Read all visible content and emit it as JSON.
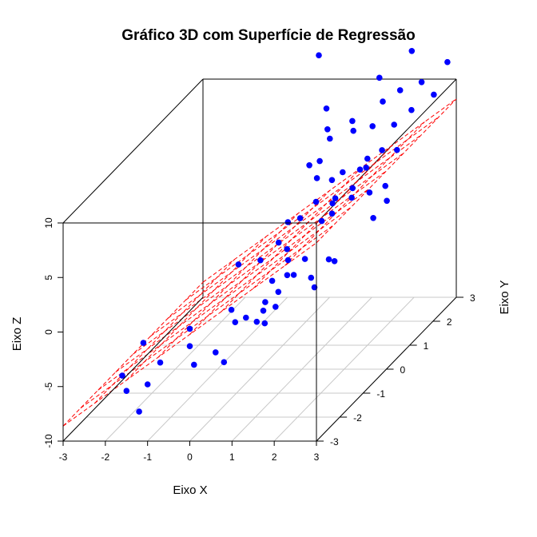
{
  "chart_data": {
    "type": "scatter",
    "title": "Gráfico 3D com Superfície de Regressão",
    "xlabel": "Eixo X",
    "ylabel": "Eixo Y",
    "zlabel": "Eixo Z",
    "xlim": [
      -3,
      3
    ],
    "ylim": [
      -3,
      3
    ],
    "zlim": [
      -10,
      10
    ],
    "x_ticks": [
      -3,
      -2,
      -1,
      0,
      1,
      2,
      3
    ],
    "y_ticks": [
      -3,
      -2,
      -1,
      0,
      1,
      2,
      3
    ],
    "z_ticks": [
      -10,
      -5,
      0,
      5,
      10
    ],
    "grid": true,
    "box": true,
    "point_color": "#0000ff",
    "surface_color": "#ff0000",
    "grid_color": "#c8c8c8",
    "surface": {
      "type": "regression-plane",
      "intercept": -0.22,
      "x_coef": 2.8,
      "y_coef": 0.0,
      "grid_lines": 9
    },
    "points": [
      {
        "x": -1.6,
        "y": -3.0,
        "z": -4.0
      },
      {
        "x": -1.5,
        "y": -3.0,
        "z": -5.4
      },
      {
        "x": -1.1,
        "y": -3.0,
        "z": -1.0
      },
      {
        "x": -1.2,
        "y": -3.0,
        "z": -7.3
      },
      {
        "x": -1.0,
        "y": -3.0,
        "z": -4.8
      },
      {
        "x": -0.7,
        "y": -3.0,
        "z": -2.8
      },
      {
        "x": 0.0,
        "y": -3.0,
        "z": 0.3
      },
      {
        "x": 0.0,
        "y": -3.0,
        "z": -1.3
      },
      {
        "x": 0.1,
        "y": -3.0,
        "z": -3.0
      },
      {
        "x": 0.5,
        "y": -2.8,
        "z": -2.3
      },
      {
        "x": 0.7,
        "y": -2.8,
        "z": -3.2
      },
      {
        "x": 0.8,
        "y": -2.5,
        "z": -0.2
      },
      {
        "x": 0.6,
        "y": -2.3,
        "z": 0.5
      },
      {
        "x": 0.6,
        "y": -2.0,
        "z": 4.0
      },
      {
        "x": 1.0,
        "y": -2.4,
        "z": 0.0
      },
      {
        "x": 1.2,
        "y": -2.3,
        "z": -0.6
      },
      {
        "x": 1.3,
        "y": -2.2,
        "z": 0.2
      },
      {
        "x": 1.4,
        "y": -2.3,
        "z": 1.2
      },
      {
        "x": 1.5,
        "y": -2.5,
        "z": -0.3
      },
      {
        "x": 1.7,
        "y": -2.4,
        "z": 1.0
      },
      {
        "x": 1.4,
        "y": -2.0,
        "z": 2.5
      },
      {
        "x": 0.9,
        "y": -1.6,
        "z": 3.5
      },
      {
        "x": 1.5,
        "y": -1.5,
        "z": 3.3
      },
      {
        "x": 1.7,
        "y": -1.9,
        "z": 2.8
      },
      {
        "x": 1.6,
        "y": -2.1,
        "z": 1.7
      },
      {
        "x": 1.8,
        "y": -1.8,
        "z": 2.6
      },
      {
        "x": 1.9,
        "y": -1.5,
        "z": 3.4
      },
      {
        "x": 2.1,
        "y": -1.6,
        "z": 1.9
      },
      {
        "x": 2.4,
        "y": -2.0,
        "z": 1.9
      },
      {
        "x": 2.3,
        "y": -1.2,
        "z": 2.7
      },
      {
        "x": 2.6,
        "y": -1.5,
        "z": 3.2
      },
      {
        "x": 1.0,
        "y": -1.0,
        "z": 3.8
      },
      {
        "x": 1.2,
        "y": -1.0,
        "z": 3.2
      },
      {
        "x": 1.0,
        "y": -0.6,
        "z": 4.8
      },
      {
        "x": 1.4,
        "y": -0.8,
        "z": 5.6
      },
      {
        "x": 1.5,
        "y": -0.3,
        "z": 6.0
      },
      {
        "x": 1.8,
        "y": -0.6,
        "z": 4.9
      },
      {
        "x": 1.9,
        "y": -0.2,
        "z": 6.1
      },
      {
        "x": 2.0,
        "y": -0.5,
        "z": 6.3
      },
      {
        "x": 2.1,
        "y": -0.7,
        "z": 5.8
      },
      {
        "x": 2.2,
        "y": 0.0,
        "z": 6.6
      },
      {
        "x": 2.4,
        "y": -0.4,
        "z": 6.6
      },
      {
        "x": 2.6,
        "y": 0.0,
        "z": 6.2
      },
      {
        "x": 2.8,
        "y": -0.2,
        "z": 4.3
      },
      {
        "x": 2.9,
        "y": 0.2,
        "z": 5.0
      },
      {
        "x": 2.7,
        "y": 0.5,
        "z": 5.7
      },
      {
        "x": 2.3,
        "y": 0.4,
        "z": 7.6
      },
      {
        "x": 2.1,
        "y": 0.5,
        "z": 7.2
      },
      {
        "x": 1.8,
        "y": 0.3,
        "z": 7.4
      },
      {
        "x": 1.6,
        "y": 0.2,
        "z": 6.9
      },
      {
        "x": 1.3,
        "y": 0.1,
        "z": 7.3
      },
      {
        "x": 1.2,
        "y": 0.4,
        "z": 8.2
      },
      {
        "x": 0.9,
        "y": 0.5,
        "z": 7.6
      },
      {
        "x": 2.0,
        "y": 1.0,
        "z": 7.1
      },
      {
        "x": 2.4,
        "y": 0.9,
        "z": 8.1
      },
      {
        "x": 2.7,
        "y": 1.0,
        "z": 7.9
      },
      {
        "x": 1.0,
        "y": 1.2,
        "z": 8.5
      },
      {
        "x": 1.5,
        "y": 1.3,
        "z": 9.0
      },
      {
        "x": 1.9,
        "y": 1.4,
        "z": 9.2
      },
      {
        "x": 2.3,
        "y": 1.6,
        "z": 8.9
      },
      {
        "x": 2.6,
        "y": 1.8,
        "z": 9.8
      },
      {
        "x": 1.2,
        "y": 1.8,
        "z": 8.8
      },
      {
        "x": 1.7,
        "y": 2.2,
        "z": 9.7
      },
      {
        "x": 2.0,
        "y": 2.4,
        "z": 10.3
      },
      {
        "x": 2.4,
        "y": 2.6,
        "z": 10.6
      },
      {
        "x": 2.8,
        "y": 2.4,
        "z": 9.9
      },
      {
        "x": 1.4,
        "y": 2.6,
        "z": 11.0
      },
      {
        "x": 0.2,
        "y": 2.5,
        "z": 8.4
      },
      {
        "x": 0.5,
        "y": 2.0,
        "z": 7.6
      },
      {
        "x": 2.9,
        "y": 2.8,
        "z": 12.0
      },
      {
        "x": -0.2,
        "y": 2.9,
        "z": 12.4
      },
      {
        "x": 2.0,
        "y": 2.9,
        "z": 12.8
      }
    ]
  }
}
